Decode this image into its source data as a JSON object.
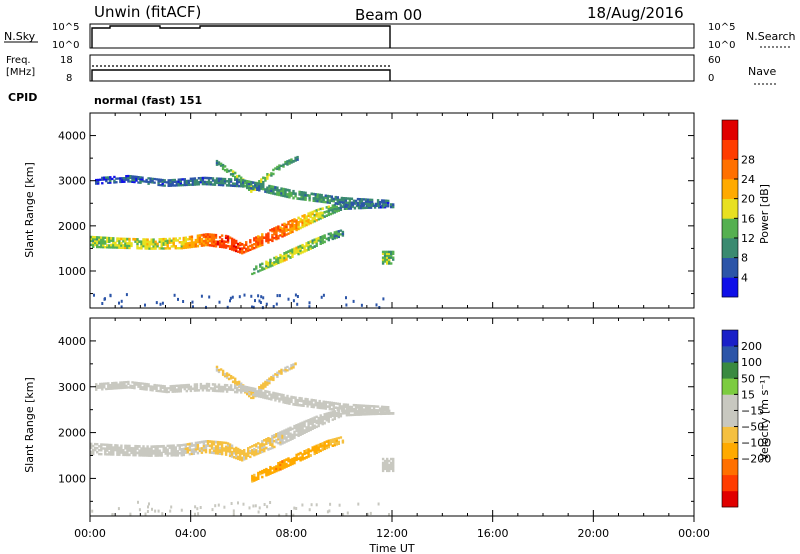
{
  "header": {
    "station": "Unwin  (fitACF)",
    "beam": "Beam 00",
    "date": "18/Aug/2016"
  },
  "left_labels": {
    "nsky": "N.Sky",
    "freq_line1": "Freq.",
    "freq_line2": "[MHz]",
    "cpid": "CPID"
  },
  "right_labels": {
    "nsearch": "N.Search",
    "nave": "Nave"
  },
  "strips": {
    "nsky_ticks": [
      "10^5",
      "10^0"
    ],
    "nsearch_ticks": [
      "10^5",
      "10^0"
    ],
    "freq_ticks": [
      "18",
      "8"
    ],
    "nave_ticks": [
      "60",
      "0"
    ],
    "cpid_text": "normal (fast) 151"
  },
  "x_axis": {
    "label": "Time UT",
    "ticks": [
      "00:00",
      "04:00",
      "08:00",
      "12:00",
      "16:00",
      "20:00",
      "00:00"
    ]
  },
  "panels": {
    "power": {
      "ylabel": "Slant Range [km]",
      "yticks": [
        "1000",
        "2000",
        "3000",
        "4000"
      ],
      "colorbar_label": "Power [dB]",
      "colorbar_ticks": [
        "4",
        "8",
        "12",
        "16",
        "20",
        "24",
        "28"
      ]
    },
    "velocity": {
      "ylabel": "Slant Range [km]",
      "yticks": [
        "1000",
        "2000",
        "3000",
        "4000"
      ],
      "colorbar_label": "Velocity [m s⁻¹]",
      "colorbar_ticks": [
        "200",
        "100",
        "50",
        "15",
        "−15",
        "−50",
        "−100",
        "−200"
      ]
    }
  },
  "chart_data": [
    {
      "type": "heatmap",
      "title": "Power",
      "x_range_hours": [
        0,
        24
      ],
      "y_range_km": [
        180,
        4500
      ],
      "data_end_hour": 12,
      "colorscale": [
        "#1010e8",
        "#2c55a8",
        "#3a8a70",
        "#55b050",
        "#e8e020",
        "#ffaa00",
        "#ff7000",
        "#ff3c00",
        "#e00000"
      ],
      "colorscale_limits_db": [
        0,
        30
      ],
      "bands": [
        {
          "t": [
            0,
            1.2,
            2.4,
            3.6,
            4.6,
            5.4,
            6.0,
            6.6,
            7.2,
            8.0,
            9.0,
            10.0,
            11.2,
            12.0
          ],
          "r": [
            1650,
            1620,
            1600,
            1620,
            1700,
            1650,
            1500,
            1650,
            1800,
            2000,
            2250,
            2450,
            2450,
            2450
          ],
          "w": [
            260,
            240,
            240,
            260,
            280,
            300,
            240,
            260,
            300,
            300,
            260,
            180,
            120,
            100
          ],
          "v": [
            12,
            14,
            14,
            16,
            22,
            26,
            24,
            22,
            24,
            20,
            14,
            8,
            6,
            6
          ]
        },
        {
          "t": [
            6.4,
            7.0,
            7.6,
            8.2,
            8.8,
            9.4,
            10.0
          ],
          "r": [
            1000,
            1150,
            1300,
            1450,
            1600,
            1750,
            1850
          ],
          "w": [
            160,
            180,
            200,
            200,
            200,
            180,
            160
          ],
          "v": [
            10,
            12,
            14,
            14,
            12,
            10,
            8
          ]
        },
        {
          "t": [
            5.0,
            5.8,
            6.4,
            7.0,
            7.6,
            8.2
          ],
          "r": [
            3400,
            3100,
            2800,
            3100,
            3350,
            3500
          ],
          "w": [
            120,
            140,
            160,
            140,
            120,
            100
          ],
          "v": [
            8,
            12,
            14,
            12,
            10,
            8
          ]
        },
        {
          "t": [
            0.2,
            1.5,
            3.0,
            4.5,
            6.0,
            8.0,
            10.0,
            11.8
          ],
          "r": [
            3000,
            3050,
            2950,
            3000,
            2950,
            2700,
            2550,
            2500
          ],
          "w": [
            160,
            160,
            160,
            180,
            180,
            200,
            180,
            160
          ],
          "v": [
            4,
            5,
            6,
            6,
            8,
            10,
            8,
            6
          ]
        },
        {
          "t": [
            11.6,
            12.0
          ],
          "r": [
            1300,
            1300
          ],
          "w": [
            300,
            300
          ],
          "v": [
            12,
            12
          ]
        }
      ]
    },
    {
      "type": "heatmap",
      "title": "Velocity",
      "x_range_hours": [
        0,
        24
      ],
      "y_range_km": [
        180,
        4500
      ],
      "data_end_hour": 12,
      "colorscale": [
        "#e00000",
        "#ff3c00",
        "#ff7000",
        "#ffaa00",
        "#f5c040",
        "#c8c8c0",
        "#c8c8c0",
        "#7ccc40",
        "#3a8a40",
        "#2c55a8",
        "#1a20c8"
      ],
      "colorscale_limits_ms": [
        -250,
        250
      ],
      "bands": [
        {
          "t": [
            0,
            1.2,
            2.4,
            3.6,
            4.6,
            5.4,
            6.0,
            6.6,
            7.2,
            8.0,
            9.0,
            10.0,
            11.2,
            12.0
          ],
          "r": [
            1650,
            1620,
            1600,
            1620,
            1700,
            1650,
            1500,
            1650,
            1800,
            2000,
            2250,
            2450,
            2450,
            2450
          ],
          "w": [
            260,
            240,
            240,
            260,
            280,
            300,
            240,
            260,
            300,
            300,
            260,
            180,
            120,
            100
          ],
          "v": [
            0,
            0,
            0,
            -5,
            -30,
            -40,
            -40,
            -30,
            -20,
            0,
            0,
            0,
            0,
            0
          ]
        },
        {
          "t": [
            6.4,
            7.0,
            7.6,
            8.2,
            8.8,
            9.4,
            10.0
          ],
          "r": [
            1000,
            1150,
            1300,
            1450,
            1600,
            1750,
            1850
          ],
          "w": [
            160,
            180,
            200,
            200,
            200,
            180,
            160
          ],
          "v": [
            -80,
            -90,
            -100,
            -90,
            -80,
            -70,
            -60
          ]
        },
        {
          "t": [
            5.0,
            5.8,
            6.4,
            7.0,
            7.6,
            8.2
          ],
          "r": [
            3400,
            3100,
            2800,
            3100,
            3350,
            3500
          ],
          "w": [
            120,
            140,
            160,
            140,
            120,
            100
          ],
          "v": [
            -30,
            -40,
            -40,
            -35,
            -30,
            -30
          ]
        },
        {
          "t": [
            0.2,
            1.5,
            3.0,
            4.5,
            6.0,
            8.0,
            10.0,
            11.8
          ],
          "r": [
            3000,
            3050,
            2950,
            3000,
            2950,
            2700,
            2550,
            2500
          ],
          "w": [
            160,
            160,
            160,
            180,
            180,
            200,
            180,
            160
          ],
          "v": [
            0,
            0,
            0,
            0,
            0,
            0,
            0,
            0
          ]
        },
        {
          "t": [
            11.6,
            12.0
          ],
          "r": [
            1300,
            1300
          ],
          "w": [
            300,
            300
          ],
          "v": [
            0,
            0
          ]
        }
      ]
    }
  ]
}
